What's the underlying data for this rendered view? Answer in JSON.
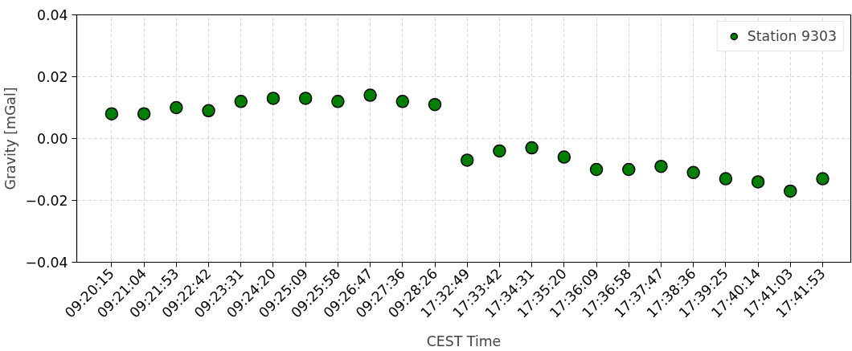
{
  "chart_data": {
    "type": "scatter",
    "xlabel": "CEST Time",
    "ylabel": "Gravity [mGal]",
    "categories": [
      "09:20:15",
      "09:21:04",
      "09:21:53",
      "09:22:42",
      "09:23:31",
      "09:24:20",
      "09:25:09",
      "09:25:58",
      "09:26:47",
      "09:27:36",
      "09:28:26",
      "17:32:49",
      "17:33:42",
      "17:34:31",
      "17:35:20",
      "17:36:09",
      "17:36:58",
      "17:37:47",
      "17:38:36",
      "17:39:25",
      "17:40:14",
      "17:41:03",
      "17:41:53"
    ],
    "series": [
      {
        "name": "Station 9303",
        "color": "#008000",
        "values": [
          0.008,
          0.008,
          0.01,
          0.009,
          0.012,
          0.013,
          0.013,
          0.012,
          0.014,
          0.012,
          0.011,
          -0.007,
          -0.004,
          -0.003,
          -0.006,
          -0.01,
          -0.01,
          -0.009,
          -0.011,
          -0.013,
          -0.014,
          -0.017,
          -0.013
        ]
      }
    ],
    "ylim": [
      -0.04,
      0.04
    ],
    "yticks": [
      {
        "value": -0.04,
        "label": "−0.04"
      },
      {
        "value": -0.02,
        "label": "−0.02"
      },
      {
        "value": 0,
        "label": "0.00"
      },
      {
        "value": 0.02,
        "label": "0.02"
      },
      {
        "value": 0.04,
        "label": "0.04"
      }
    ],
    "grid": true,
    "legend": "top right",
    "marker": "circle"
  }
}
